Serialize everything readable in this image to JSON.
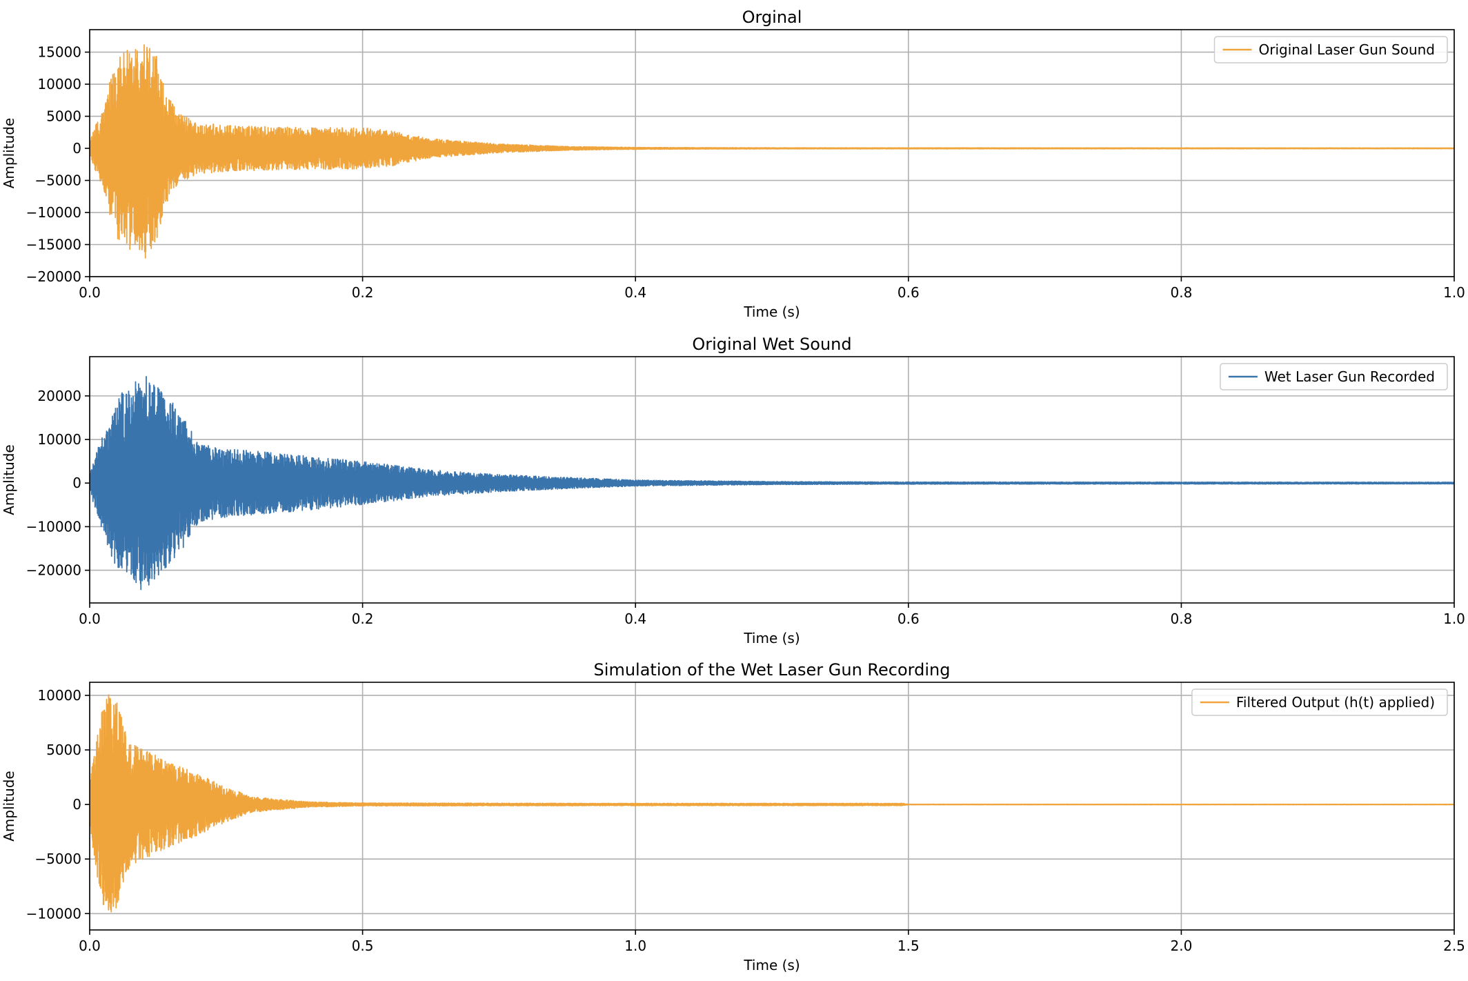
{
  "chart_data": [
    {
      "type": "line",
      "title": "Orginal",
      "xlabel": "Time (s)",
      "ylabel": "Amplitude",
      "xlim": [
        0,
        1.0
      ],
      "ylim": [
        -20000,
        18500
      ],
      "x_ticks": [
        "0.0",
        "0.2",
        "0.4",
        "0.6",
        "0.8",
        "1.0"
      ],
      "x_tick_values": [
        0,
        0.2,
        0.4,
        0.6,
        0.8,
        1.0
      ],
      "y_ticks": [
        "−20000",
        "−15000",
        "−10000",
        "−5000",
        "0",
        "5000",
        "10000",
        "15000"
      ],
      "y_tick_values": [
        -20000,
        -15000,
        -10000,
        -5000,
        0,
        5000,
        10000,
        15000
      ],
      "grid": true,
      "legend_position": "top-right",
      "series": [
        {
          "name": "Original Laser Gun Sound",
          "color": "#f0a43c",
          "duration": 1.0,
          "envelope": [
            [
              0,
              1000
            ],
            [
              0.01,
              7000
            ],
            [
              0.02,
              14000
            ],
            [
              0.03,
              16000
            ],
            [
              0.04,
              17500
            ],
            [
              0.05,
              14000
            ],
            [
              0.055,
              9000
            ],
            [
              0.065,
              5500
            ],
            [
              0.08,
              4000
            ],
            [
              0.1,
              3600
            ],
            [
              0.15,
              3300
            ],
            [
              0.2,
              3200
            ],
            [
              0.22,
              2800
            ],
            [
              0.25,
              1500
            ],
            [
              0.3,
              700
            ],
            [
              0.35,
              300
            ],
            [
              0.4,
              150
            ],
            [
              0.5,
              90
            ],
            [
              1.0,
              60
            ]
          ]
        }
      ]
    },
    {
      "type": "line",
      "title": "Original Wet Sound",
      "xlabel": "Time (s)",
      "ylabel": "Amplitude",
      "xlim": [
        0,
        1.0
      ],
      "ylim": [
        -27500,
        29000
      ],
      "x_ticks": [
        "0.0",
        "0.2",
        "0.4",
        "0.6",
        "0.8",
        "1.0"
      ],
      "x_tick_values": [
        0,
        0.2,
        0.4,
        0.6,
        0.8,
        1.0
      ],
      "y_ticks": [
        "−20000",
        "−10000",
        "0",
        "10000",
        "20000"
      ],
      "y_tick_values": [
        -20000,
        -10000,
        0,
        10000,
        20000
      ],
      "grid": true,
      "legend_position": "top-right",
      "series": [
        {
          "name": "Wet Laser Gun Recorded",
          "color": "#3a74ad",
          "duration": 1.0,
          "envelope": [
            [
              0,
              2000
            ],
            [
              0.01,
              12000
            ],
            [
              0.02,
              20000
            ],
            [
              0.03,
              22000
            ],
            [
              0.04,
              25500
            ],
            [
              0.05,
              22000
            ],
            [
              0.065,
              17000
            ],
            [
              0.08,
              9000
            ],
            [
              0.1,
              8000
            ],
            [
              0.15,
              6500
            ],
            [
              0.2,
              5000
            ],
            [
              0.25,
              3000
            ],
            [
              0.3,
              2000
            ],
            [
              0.35,
              1300
            ],
            [
              0.4,
              700
            ],
            [
              0.5,
              350
            ],
            [
              0.6,
              250
            ],
            [
              1.0,
              200
            ]
          ]
        }
      ]
    },
    {
      "type": "line",
      "title": "Simulation of the Wet Laser Gun Recording",
      "xlabel": "Time (s)",
      "ylabel": "Amplitude",
      "xlim": [
        0,
        2.5
      ],
      "ylim": [
        -11500,
        11200
      ],
      "x_ticks": [
        "0.0",
        "0.5",
        "1.0",
        "1.5",
        "2.0",
        "2.5"
      ],
      "x_tick_values": [
        0,
        0.5,
        1.0,
        1.5,
        2.0,
        2.5
      ],
      "y_ticks": [
        "−10000",
        "−5000",
        "0",
        "5000",
        "10000"
      ],
      "y_tick_values": [
        -10000,
        -5000,
        0,
        5000,
        10000
      ],
      "grid": true,
      "legend_position": "top-right",
      "series": [
        {
          "name": "Filtered Output (h(t) applied)",
          "color": "#f0a43c",
          "duration": 2.5,
          "envelope": [
            [
              0,
              2000
            ],
            [
              0.015,
              7000
            ],
            [
              0.03,
              10300
            ],
            [
              0.05,
              9500
            ],
            [
              0.07,
              6000
            ],
            [
              0.1,
              5000
            ],
            [
              0.15,
              3800
            ],
            [
              0.2,
              2800
            ],
            [
              0.25,
              1600
            ],
            [
              0.3,
              700
            ],
            [
              0.4,
              250
            ],
            [
              0.5,
              140
            ],
            [
              1.0,
              110
            ],
            [
              1.49,
              110
            ],
            [
              1.5,
              25
            ],
            [
              2.5,
              20
            ]
          ]
        }
      ]
    }
  ]
}
